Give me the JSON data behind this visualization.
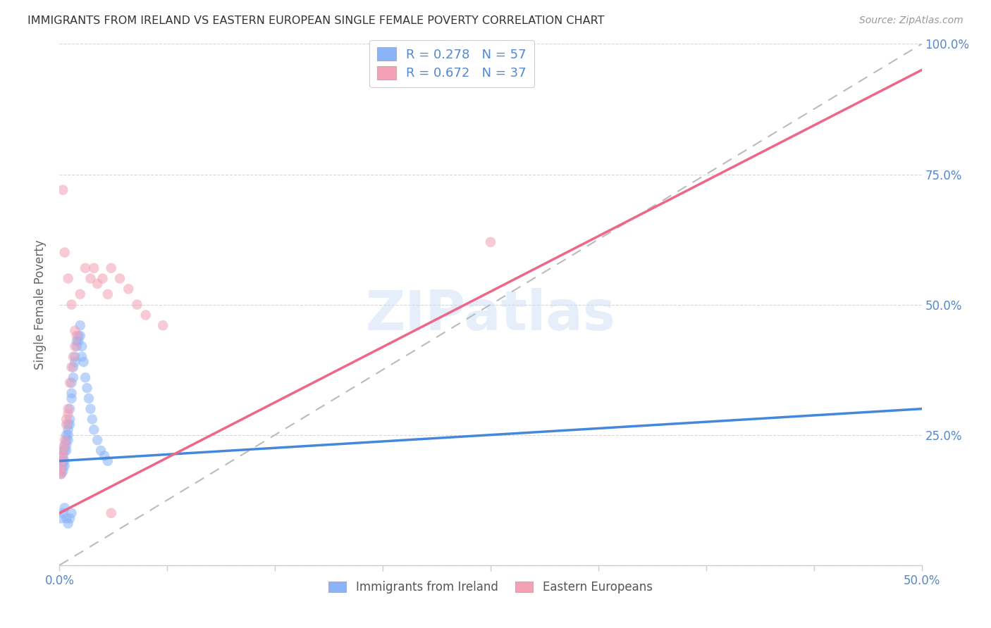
{
  "title": "IMMIGRANTS FROM IRELAND VS EASTERN EUROPEAN SINGLE FEMALE POVERTY CORRELATION CHART",
  "source": "Source: ZipAtlas.com",
  "ylabel": "Single Female Poverty",
  "xlim": [
    0.0,
    0.5
  ],
  "ylim": [
    0.0,
    1.0
  ],
  "ireland_color": "#8ab4f8",
  "eastern_color": "#f4a0b5",
  "ireland_R": 0.278,
  "ireland_N": 57,
  "eastern_R": 0.672,
  "eastern_N": 37,
  "legend_label_ireland": "Immigrants from Ireland",
  "legend_label_eastern": "Eastern Europeans",
  "watermark_text": "ZIPatlas",
  "background_color": "#ffffff",
  "grid_color": "#cccccc",
  "title_color": "#333333",
  "axis_tick_color": "#5588cc",
  "ireland_line_color": "#4488dd",
  "eastern_line_color": "#ee6688",
  "diagonal_color": "#bbbbbb",
  "ylabel_color": "#666666",
  "scatter_size": 110,
  "scatter_alpha": 0.55,
  "ireland_x": [
    0.001,
    0.001,
    0.001,
    0.001,
    0.002,
    0.002,
    0.002,
    0.002,
    0.002,
    0.003,
    0.003,
    0.003,
    0.003,
    0.004,
    0.004,
    0.004,
    0.004,
    0.005,
    0.005,
    0.005,
    0.005,
    0.006,
    0.006,
    0.006,
    0.007,
    0.007,
    0.007,
    0.008,
    0.008,
    0.009,
    0.009,
    0.01,
    0.01,
    0.011,
    0.011,
    0.012,
    0.012,
    0.013,
    0.013,
    0.014,
    0.015,
    0.016,
    0.017,
    0.018,
    0.019,
    0.02,
    0.022,
    0.024,
    0.026,
    0.028,
    0.001,
    0.002,
    0.003,
    0.004,
    0.005,
    0.006,
    0.007
  ],
  "ireland_y": [
    0.175,
    0.18,
    0.19,
    0.2,
    0.21,
    0.22,
    0.2,
    0.19,
    0.18,
    0.22,
    0.23,
    0.2,
    0.19,
    0.25,
    0.24,
    0.23,
    0.22,
    0.26,
    0.27,
    0.25,
    0.24,
    0.3,
    0.28,
    0.27,
    0.35,
    0.33,
    0.32,
    0.38,
    0.36,
    0.4,
    0.39,
    0.43,
    0.42,
    0.44,
    0.43,
    0.46,
    0.44,
    0.42,
    0.4,
    0.39,
    0.36,
    0.34,
    0.32,
    0.3,
    0.28,
    0.26,
    0.24,
    0.22,
    0.21,
    0.2,
    0.09,
    0.1,
    0.11,
    0.09,
    0.08,
    0.09,
    0.1
  ],
  "eastern_x": [
    0.001,
    0.001,
    0.001,
    0.001,
    0.002,
    0.002,
    0.003,
    0.003,
    0.004,
    0.004,
    0.005,
    0.005,
    0.006,
    0.007,
    0.008,
    0.009,
    0.01,
    0.012,
    0.015,
    0.018,
    0.02,
    0.022,
    0.025,
    0.028,
    0.03,
    0.035,
    0.04,
    0.045,
    0.05,
    0.06,
    0.002,
    0.003,
    0.005,
    0.007,
    0.009,
    0.25,
    0.03
  ],
  "eastern_y": [
    0.175,
    0.18,
    0.19,
    0.2,
    0.22,
    0.21,
    0.24,
    0.23,
    0.28,
    0.27,
    0.3,
    0.29,
    0.35,
    0.38,
    0.4,
    0.42,
    0.44,
    0.52,
    0.57,
    0.55,
    0.57,
    0.54,
    0.55,
    0.52,
    0.57,
    0.55,
    0.53,
    0.5,
    0.48,
    0.46,
    0.72,
    0.6,
    0.55,
    0.5,
    0.45,
    0.62,
    0.1
  ],
  "ireland_line_x0": 0.0,
  "ireland_line_y0": 0.2,
  "ireland_line_x1": 0.5,
  "ireland_line_y1": 0.3,
  "eastern_line_x0": 0.0,
  "eastern_line_y0": 0.1,
  "eastern_line_x1": 0.5,
  "eastern_line_y1": 0.95
}
